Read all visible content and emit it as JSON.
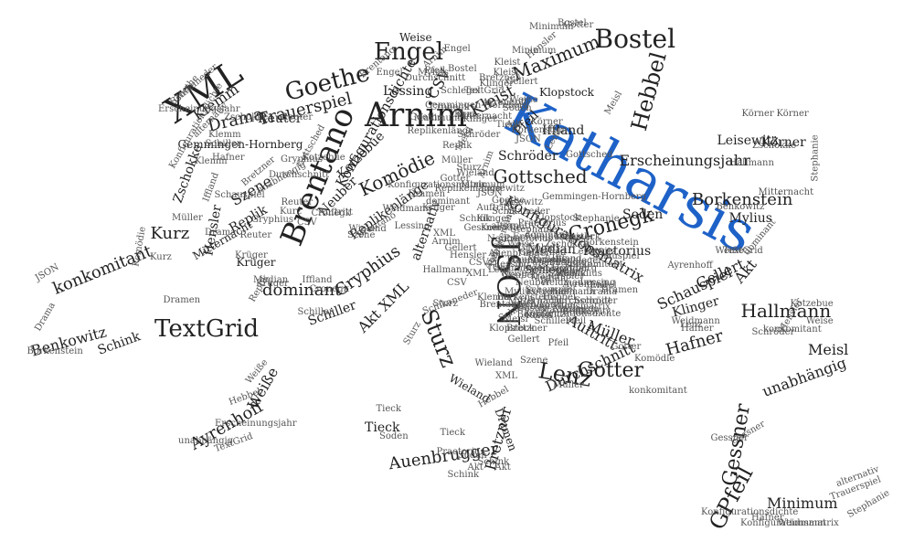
{
  "colors": {
    "accent": "#1e62c8",
    "text": "#222222",
    "background": "#ffffff"
  },
  "words": [
    {
      "text": "Katharsis",
      "accent": true
    },
    {
      "text": "XML"
    },
    {
      "text": "Arnim"
    },
    {
      "text": "Brentano"
    },
    {
      "text": "Bostel"
    },
    {
      "text": "JSON"
    },
    {
      "text": "Goethe"
    },
    {
      "text": "Engel"
    },
    {
      "text": "TextGrid"
    },
    {
      "text": "Hebbel"
    },
    {
      "text": "Maximum"
    },
    {
      "text": "Sturz"
    },
    {
      "text": "Gessner"
    },
    {
      "text": "GPfeil"
    },
    {
      "text": "Lenz"
    },
    {
      "text": "Gotter"
    },
    {
      "text": "Hallmann"
    },
    {
      "text": "Cronegk"
    },
    {
      "text": "Gottsched"
    },
    {
      "text": "Borkenstein"
    },
    {
      "text": "Komödie"
    },
    {
      "text": "Trauerspiel"
    },
    {
      "text": "Drama"
    },
    {
      "text": "Gryphius"
    },
    {
      "text": "dominant"
    },
    {
      "text": "Auenbrugger"
    },
    {
      "text": "Ayrenhoff"
    },
    {
      "text": "Benkowitz"
    },
    {
      "text": "konkomitant"
    },
    {
      "text": "Kurz"
    },
    {
      "text": "Müller"
    },
    {
      "text": "Auftritt"
    },
    {
      "text": "Durchschnitt"
    },
    {
      "text": "Hafner"
    },
    {
      "text": "Schauspiel"
    },
    {
      "text": "Gellert"
    },
    {
      "text": "Akt"
    },
    {
      "text": "Meisl"
    },
    {
      "text": "unabhängig"
    },
    {
      "text": "Minimum"
    },
    {
      "text": "Kleist"
    },
    {
      "text": "Klemm"
    },
    {
      "text": "Reuter"
    },
    {
      "text": "Szene"
    },
    {
      "text": "Replik"
    },
    {
      "text": "Kotzebue"
    },
    {
      "text": "Neuber"
    },
    {
      "text": "Replikenlänge"
    },
    {
      "text": "Konfigurationsdichte"
    },
    {
      "text": "Konfigurationsmatrix"
    },
    {
      "text": "Median"
    },
    {
      "text": "Iffland"
    },
    {
      "text": "Erscheinungsjahr"
    },
    {
      "text": "Leisewitz"
    },
    {
      "text": "Körner"
    },
    {
      "text": "Mylius"
    },
    {
      "text": "Soden"
    },
    {
      "text": "Praetorius"
    },
    {
      "text": "Schröder"
    },
    {
      "text": "Klopstock"
    },
    {
      "text": "Pfeil"
    },
    {
      "text": "Klinger"
    },
    {
      "text": "Bretzner"
    },
    {
      "text": "Tieck"
    },
    {
      "text": "Wieland"
    },
    {
      "text": "Schiller"
    },
    {
      "text": "Akt XML"
    },
    {
      "text": "alternativ"
    },
    {
      "text": "Weiße"
    },
    {
      "text": "Schink"
    },
    {
      "text": "Dramen"
    },
    {
      "text": "Hensler"
    },
    {
      "text": "Zschokke"
    },
    {
      "text": "Gemmingen-Hornberg"
    },
    {
      "text": "Lessing"
    },
    {
      "text": "CSV"
    },
    {
      "text": "Weise"
    },
    {
      "text": "Mitternacht"
    },
    {
      "text": "Krüger"
    },
    {
      "text": "Schlegel"
    },
    {
      "text": "Weidmann"
    },
    {
      "text": "Stephanie"
    },
    {
      "text": "Borkenstein"
    },
    {
      "text": "Schikaneder"
    },
    {
      "text": "Hafner"
    },
    {
      "text": "Reuter"
    },
    {
      "text": "Iffland"
    },
    {
      "text": "Bretzner"
    },
    {
      "text": "unabhängig"
    },
    {
      "text": "Gottsched"
    },
    {
      "text": "Gryphius"
    },
    {
      "text": "Szene"
    },
    {
      "text": "Lenz"
    },
    {
      "text": "Cronegk"
    },
    {
      "text": "Auftritt"
    },
    {
      "text": "Kurz"
    },
    {
      "text": "Müller"
    },
    {
      "text": "Median"
    },
    {
      "text": "Drama"
    },
    {
      "text": "Gessner"
    },
    {
      "text": "Krüger"
    },
    {
      "text": "Hebbel"
    },
    {
      "text": "TextGrid"
    },
    {
      "text": "Tieck"
    },
    {
      "text": "Soden"
    },
    {
      "text": "Schink"
    },
    {
      "text": "Akt"
    },
    {
      "text": "Kotzebue"
    },
    {
      "text": "Hensler"
    },
    {
      "text": "Weiße"
    },
    {
      "text": "Schiller"
    },
    {
      "text": "Engel"
    },
    {
      "text": "Gellert"
    },
    {
      "text": "Brentano"
    },
    {
      "text": "CSV"
    },
    {
      "text": "Wieland"
    },
    {
      "text": "Klemm"
    },
    {
      "text": "Arnim"
    },
    {
      "text": "Körner"
    },
    {
      "text": "Sturz"
    },
    {
      "text": "Kleist"
    },
    {
      "text": "Gotter"
    },
    {
      "text": "Meisl"
    },
    {
      "text": "Minimum"
    },
    {
      "text": "Bostel"
    },
    {
      "text": "Maximum"
    },
    {
      "text": "Replikenlänge"
    },
    {
      "text": "JSON"
    },
    {
      "text": "konkomitant"
    },
    {
      "text": "Durchschnitt"
    },
    {
      "text": "Goethe"
    },
    {
      "text": "XML"
    },
    {
      "text": "Dramen"
    },
    {
      "text": "alternativ"
    },
    {
      "text": "Zschokke"
    },
    {
      "text": "Gemmingen-Hornberg"
    },
    {
      "text": "Klinger"
    },
    {
      "text": "Komödie"
    },
    {
      "text": "Benkowitz"
    },
    {
      "text": "Schröder"
    },
    {
      "text": "Mylius"
    },
    {
      "text": "Weise"
    },
    {
      "text": "Hallmann"
    },
    {
      "text": "Leisewitz"
    },
    {
      "text": "dominant"
    },
    {
      "text": "Neuber"
    },
    {
      "text": "Schlegel"
    },
    {
      "text": "Pfeil"
    },
    {
      "text": "Lessing"
    },
    {
      "text": "Trauerspiel"
    },
    {
      "text": "Stephanie"
    },
    {
      "text": "Praetorius"
    },
    {
      "text": "Auenbrugger"
    },
    {
      "text": "Klopstock"
    },
    {
      "text": "Erscheinungsjahr"
    },
    {
      "text": "Ayrenhoff"
    },
    {
      "text": "Schauspiel"
    },
    {
      "text": "Konfigurationsmatrix"
    },
    {
      "text": "Weidmann"
    },
    {
      "text": "Replik"
    },
    {
      "text": "Mitternacht"
    },
    {
      "text": "Borkenstein"
    },
    {
      "text": "Konfigurationsdichte"
    },
    {
      "text": "Schikaneder"
    },
    {
      "text": "Gryphius"
    },
    {
      "text": "Gottsched"
    },
    {
      "text": "Hafner"
    },
    {
      "text": "Reuter"
    },
    {
      "text": "Iffland"
    },
    {
      "text": "Bretzner"
    },
    {
      "text": "unabhängig"
    },
    {
      "text": "TextGrid"
    },
    {
      "text": "Engel"
    },
    {
      "text": "Akt"
    },
    {
      "text": "Drama"
    },
    {
      "text": "Szene"
    },
    {
      "text": "Müller"
    },
    {
      "text": "Lenz"
    },
    {
      "text": "Median"
    },
    {
      "text": "XML"
    },
    {
      "text": "Dramen"
    },
    {
      "text": "Kurz"
    },
    {
      "text": "Cronegk"
    },
    {
      "text": "Krüger"
    },
    {
      "text": "Kotzebue"
    },
    {
      "text": "Weiße"
    },
    {
      "text": "Hebbel"
    },
    {
      "text": "Gessner"
    },
    {
      "text": "Schink"
    },
    {
      "text": "Soden"
    },
    {
      "text": "Sturz"
    },
    {
      "text": "Arnim"
    },
    {
      "text": "Körner"
    },
    {
      "text": "Klemm"
    },
    {
      "text": "Wieland"
    },
    {
      "text": "Brentano"
    },
    {
      "text": "Tieck"
    },
    {
      "text": "Gellert"
    },
    {
      "text": "Bostel"
    },
    {
      "text": "Kleist"
    },
    {
      "text": "Meisl"
    },
    {
      "text": "Gotter"
    },
    {
      "text": "Maximum"
    },
    {
      "text": "Minimum"
    },
    {
      "text": "Hensler"
    },
    {
      "text": "Schiller"
    },
    {
      "text": "CSV"
    },
    {
      "text": "JSON"
    },
    {
      "text": "Goethe"
    },
    {
      "text": "Auftritt"
    },
    {
      "text": "Replikenlänge"
    },
    {
      "text": "Lessing"
    },
    {
      "text": "Klinger"
    },
    {
      "text": "Pfeil"
    },
    {
      "text": "Komödie"
    },
    {
      "text": "Hallmann"
    },
    {
      "text": "Durchschnitt"
    },
    {
      "text": "Weise"
    },
    {
      "text": "Neuber"
    },
    {
      "text": "Benkowitz"
    },
    {
      "text": "konkomitant"
    },
    {
      "text": "Schröder"
    },
    {
      "text": "Mylius"
    },
    {
      "text": "dominant"
    },
    {
      "text": "Leisewitz"
    },
    {
      "text": "Praetorius"
    },
    {
      "text": "Stephanie"
    },
    {
      "text": "Zschokke"
    },
    {
      "text": "Klopstock"
    },
    {
      "text": "alternativ"
    },
    {
      "text": "Trauerspiel"
    },
    {
      "text": "Erscheinungsjahr"
    },
    {
      "text": "Schlegel"
    },
    {
      "text": "Gemmingen-Hornberg"
    },
    {
      "text": "Auenbrugger"
    },
    {
      "text": "Ayrenhoff"
    },
    {
      "text": "Replik"
    },
    {
      "text": "Schauspiel"
    },
    {
      "text": "Weidmann"
    },
    {
      "text": "Mitternacht"
    },
    {
      "text": "Borkenstein"
    },
    {
      "text": "Konfigurationsmatrix"
    },
    {
      "text": "Schikaneder"
    },
    {
      "text": "Konfigurationsdichte"
    },
    {
      "text": "Gryphius"
    },
    {
      "text": "Hafner"
    },
    {
      "text": "Reuter"
    },
    {
      "text": "Gottsched"
    },
    {
      "text": "Iffland"
    },
    {
      "text": "Bretzner"
    },
    {
      "text": "unabhängig"
    },
    {
      "text": "TextGrid"
    },
    {
      "text": "Akt"
    },
    {
      "text": "Engel"
    },
    {
      "text": "Drama"
    },
    {
      "text": "Szene"
    },
    {
      "text": "Lenz"
    },
    {
      "text": "Müller"
    },
    {
      "text": "Median"
    },
    {
      "text": "Kurz"
    },
    {
      "text": "XML"
    },
    {
      "text": "Dramen"
    },
    {
      "text": "Cronegk"
    },
    {
      "text": "Krüger"
    },
    {
      "text": "Weiße"
    },
    {
      "text": "Kotzebue"
    },
    {
      "text": "Hebbel"
    },
    {
      "text": "Schink"
    },
    {
      "text": "Gessner"
    },
    {
      "text": "Soden"
    },
    {
      "text": "Sturz"
    },
    {
      "text": "Körner"
    },
    {
      "text": "Arnim"
    },
    {
      "text": "Klemm"
    },
    {
      "text": "Brentano"
    },
    {
      "text": "Wieland"
    },
    {
      "text": "Tieck"
    },
    {
      "text": "Bostel"
    },
    {
      "text": "Gellert"
    },
    {
      "text": "Kleist"
    },
    {
      "text": "Gotter"
    },
    {
      "text": "Meisl"
    },
    {
      "text": "Maximum"
    },
    {
      "text": "Hensler"
    },
    {
      "text": "Minimum"
    },
    {
      "text": "CSV"
    },
    {
      "text": "Schiller"
    },
    {
      "text": "JSON"
    },
    {
      "text": "Goethe"
    },
    {
      "text": "Replikenlänge"
    },
    {
      "text": "Auftritt"
    },
    {
      "text": "Lessing"
    },
    {
      "text": "Pfeil"
    },
    {
      "text": "Klinger"
    },
    {
      "text": "Komödie"
    },
    {
      "text": "Durchschnitt"
    },
    {
      "text": "Hallmann"
    },
    {
      "text": "Neuber"
    },
    {
      "text": "Weise"
    },
    {
      "text": "Benkowitz"
    },
    {
      "text": "Mylius"
    },
    {
      "text": "konkomitant"
    },
    {
      "text": "Schröder"
    },
    {
      "text": "dominant"
    },
    {
      "text": "Stephanie"
    },
    {
      "text": "Praetorius"
    },
    {
      "text": "Leisewitz"
    },
    {
      "text": "Zschokke"
    },
    {
      "text": "alternativ"
    },
    {
      "text": "Klopstock"
    },
    {
      "text": "Schlegel"
    },
    {
      "text": "Trauerspiel"
    },
    {
      "text": "Erscheinungsjahr"
    },
    {
      "text": "Auenbrugger"
    },
    {
      "text": "Replik"
    },
    {
      "text": "Gemmingen-Hornberg"
    },
    {
      "text": "Ayrenhoff"
    },
    {
      "text": "Weidmann"
    },
    {
      "text": "Schauspiel"
    },
    {
      "text": "Borkenstein"
    },
    {
      "text": "Mitternacht"
    },
    {
      "text": "Schikaneder"
    },
    {
      "text": "Konfigurationsmatrix"
    },
    {
      "text": "Konfigurationsdichte"
    }
  ]
}
